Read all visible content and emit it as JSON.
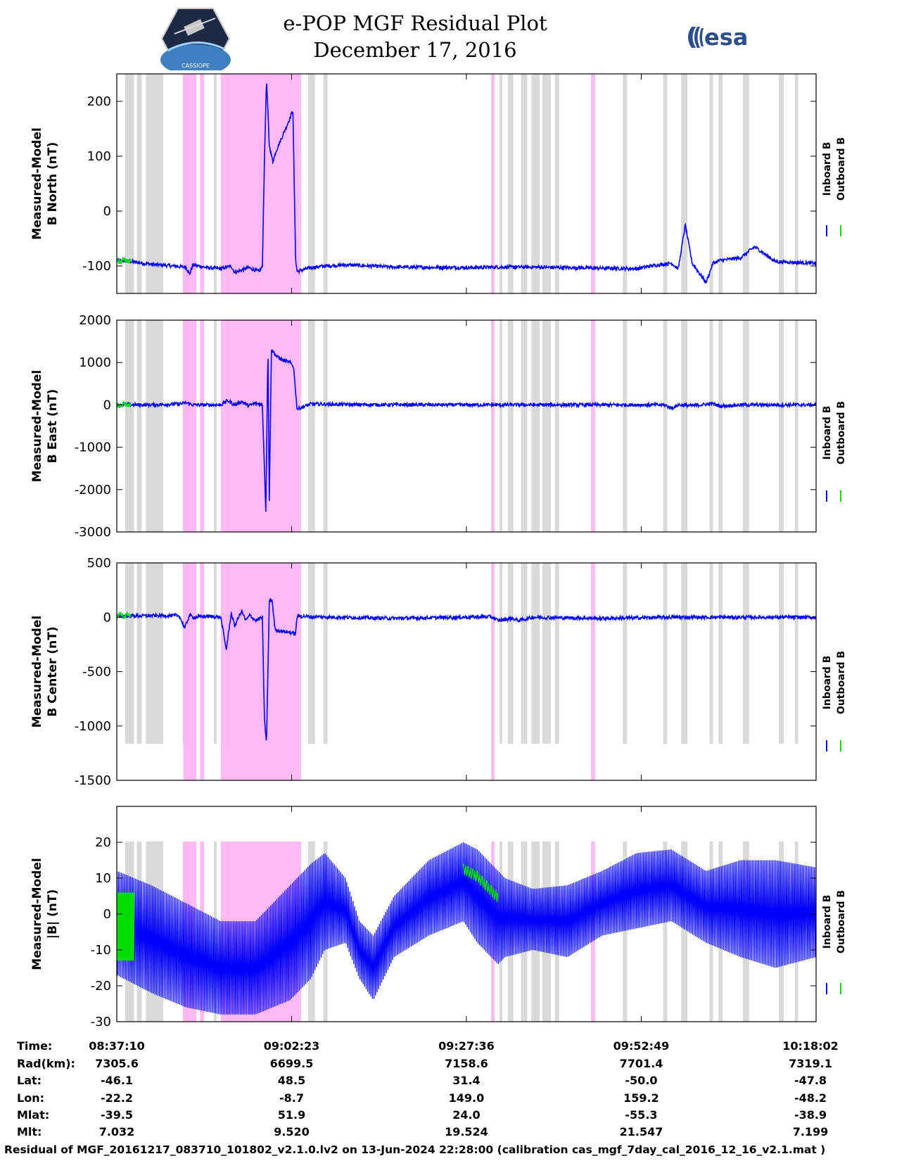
{
  "header": {
    "title_line1": "e-POP MGF Residual Plot",
    "title_line2": "December 17, 2016",
    "left_logo_text": "CASSIOPE",
    "right_logo_text": "esa"
  },
  "colors": {
    "inboard": "#0000ff",
    "outboard": "#00dd00",
    "gray_band": "#d9d9d9",
    "pink_band": "#ffb3f5"
  },
  "legend": {
    "inboard": "Inboard B",
    "outboard": "Outboard B"
  },
  "time_axis": {
    "start_min": 0,
    "end_min": 100.87,
    "tick_minutes": [
      0,
      25.22,
      50.43,
      75.65,
      100.87
    ]
  },
  "bands": {
    "gray": [
      [
        1.2,
        2.5
      ],
      [
        2.9,
        3.6
      ],
      [
        4.2,
        6.7
      ],
      [
        9.5,
        10.5
      ],
      [
        14,
        14.4
      ],
      [
        15.8,
        16.4
      ],
      [
        27.6,
        28.6
      ],
      [
        29.8,
        30.4
      ],
      [
        55.2,
        55.6
      ],
      [
        56.4,
        57.2
      ],
      [
        58.3,
        59.2
      ],
      [
        59.8,
        61.0
      ],
      [
        61.4,
        62.6
      ],
      [
        63.2,
        63.8
      ],
      [
        73.0,
        73.6
      ],
      [
        78.8,
        79.4
      ],
      [
        81.4,
        82.3
      ],
      [
        85.5,
        86.0
      ],
      [
        86.8,
        87.4
      ],
      [
        90.3,
        91.2
      ],
      [
        95.5,
        96.2
      ],
      [
        97.8,
        98.3
      ]
    ],
    "pink": [
      [
        9.6,
        11.5
      ],
      [
        12.0,
        12.6
      ],
      [
        15.0,
        26.6
      ],
      [
        54.0,
        54.5
      ],
      [
        68.4,
        69.0
      ]
    ]
  },
  "chart_data": [
    {
      "type": "line",
      "title": "",
      "ylabel_lines": [
        "Measured-Model",
        "B North (nT)"
      ],
      "ylim": [
        -150,
        250
      ],
      "yticks": [
        -100,
        0,
        100,
        200
      ],
      "series": [
        {
          "name": "Inboard B",
          "x": [
            0,
            2,
            5,
            8,
            10,
            10.5,
            11,
            13,
            15,
            16.5,
            17,
            19,
            20.5,
            21,
            21.3,
            21.6,
            22,
            22.5,
            23,
            24,
            25,
            25.4,
            25.8,
            26,
            28,
            30,
            33,
            40,
            50,
            55,
            60,
            65,
            70,
            75,
            77,
            80,
            81,
            82,
            83,
            85,
            86,
            87,
            90,
            92,
            95,
            100.87
          ],
          "values": [
            -90,
            -92,
            -97,
            -100,
            -102,
            -115,
            -98,
            -103,
            -105,
            -100,
            -112,
            -103,
            -110,
            -102,
            95,
            240,
            120,
            90,
            110,
            140,
            170,
            185,
            -90,
            -110,
            -103,
            -100,
            -98,
            -102,
            -103,
            -102,
            -102,
            -103,
            -104,
            -105,
            -100,
            -95,
            -105,
            -25,
            -95,
            -130,
            -95,
            -90,
            -85,
            -65,
            -92,
            -95
          ]
        },
        {
          "name": "Outboard B",
          "x": [
            0,
            0.5,
            1,
            1.5,
            2
          ],
          "values": [
            -88,
            -95,
            -86,
            -92,
            -90
          ]
        }
      ]
    },
    {
      "type": "line",
      "title": "",
      "ylabel_lines": [
        "Measured-Model",
        "B East (nT)"
      ],
      "ylim": [
        -3000,
        2000
      ],
      "yticks": [
        -3000,
        -2000,
        -1000,
        0,
        1000,
        2000
      ],
      "series": [
        {
          "name": "Inboard B",
          "x": [
            0,
            5,
            9,
            10,
            11,
            13,
            15,
            16,
            17,
            18,
            19,
            20,
            21,
            21.2,
            21.5,
            21.8,
            22,
            22.3,
            22.6,
            23,
            24,
            25,
            25.5,
            26,
            28,
            35,
            50,
            60,
            70,
            75,
            79,
            80,
            81,
            83,
            86,
            87,
            90,
            95,
            100.87
          ],
          "values": [
            0,
            0,
            20,
            50,
            0,
            0,
            0,
            100,
            0,
            80,
            -20,
            40,
            0,
            -1000,
            -2500,
            1350,
            -2300,
            1300,
            1250,
            1150,
            1050,
            1000,
            900,
            -100,
            20,
            5,
            0,
            0,
            0,
            0,
            0,
            -80,
            0,
            -20,
            30,
            -30,
            0,
            0,
            0
          ]
        },
        {
          "name": "Outboard B",
          "x": [
            0,
            0.5,
            1,
            1.5,
            2
          ],
          "values": [
            20,
            -30,
            30,
            -10,
            10
          ]
        }
      ]
    },
    {
      "type": "line",
      "title": "",
      "ylabel_lines": [
        "Measured-Model",
        "B Center (nT)"
      ],
      "ylim": [
        -1500,
        500
      ],
      "yticks": [
        -1500,
        -1000,
        -500,
        0,
        500
      ],
      "series": [
        {
          "name": "Inboard B",
          "x": [
            0,
            5,
            9,
            9.8,
            10.5,
            11,
            13,
            15,
            15.8,
            16.5,
            17,
            18,
            18.6,
            19.2,
            20,
            21,
            21.3,
            21.6,
            22,
            22.4,
            22.8,
            23,
            25,
            25.8,
            26,
            28,
            40,
            54,
            55,
            57,
            58,
            60,
            70,
            80,
            90,
            100.87
          ],
          "values": [
            10,
            15,
            15,
            -100,
            20,
            0,
            10,
            0,
            -300,
            40,
            -80,
            60,
            -30,
            20,
            -30,
            0,
            -950,
            -1150,
            150,
            160,
            -100,
            -120,
            -140,
            -150,
            10,
            5,
            -10,
            5,
            -30,
            -10,
            -30,
            0,
            -10,
            0,
            0,
            0
          ]
        },
        {
          "name": "Outboard B",
          "x": [
            0,
            0.5,
            1,
            1.5,
            2
          ],
          "values": [
            -10,
            40,
            0,
            30,
            10
          ]
        }
      ]
    },
    {
      "type": "line",
      "title": "",
      "ylabel_lines": [
        "Measured-Model",
        "|B| (nT)"
      ],
      "ylim": [
        -30,
        30
      ],
      "yticks": [
        -30,
        -20,
        -10,
        0,
        10,
        20
      ],
      "series": [
        {
          "name": "Inboard B upper envelope",
          "x": [
            0,
            5,
            10,
            15,
            20,
            25,
            28,
            30,
            33,
            35,
            37,
            40,
            45,
            50,
            52,
            54,
            55,
            56,
            60,
            65,
            70,
            75,
            80,
            85,
            90,
            95,
            100.87
          ],
          "values": [
            12,
            8,
            3,
            -2,
            -2,
            8,
            14,
            17,
            10,
            -2,
            -6,
            5,
            15,
            20,
            18,
            14,
            12,
            10,
            7,
            8,
            12,
            17,
            18,
            12,
            15,
            15,
            13
          ]
        },
        {
          "name": "Inboard B lower envelope",
          "x": [
            0,
            5,
            10,
            15,
            20,
            25,
            28,
            30,
            33,
            35,
            37,
            40,
            45,
            50,
            52,
            54,
            55,
            56,
            60,
            65,
            70,
            75,
            80,
            85,
            90,
            95,
            100.87
          ],
          "values": [
            -17,
            -22,
            -26,
            -28,
            -28,
            -24,
            -18,
            -10,
            -8,
            -18,
            -24,
            -12,
            -6,
            -2,
            -8,
            -12,
            -14,
            -12,
            -10,
            -12,
            -6,
            -4,
            -2,
            -8,
            -12,
            -15,
            -12
          ]
        },
        {
          "name": "Outboard B",
          "x": [
            0,
            0.5,
            1,
            1.5,
            2,
            2.5,
            50,
            51,
            52,
            53,
            54,
            55
          ],
          "values": [
            -12,
            6,
            -14,
            5,
            -13,
            -2,
            14,
            13,
            12,
            10,
            8,
            6
          ]
        }
      ]
    }
  ],
  "info_table": {
    "labels": [
      "Time:",
      "Rad(km):",
      "Lat:",
      "Lon:",
      "Mlat:",
      "Mlt:"
    ],
    "columns": [
      [
        "08:37:10",
        "7305.6",
        "-46.1",
        "-22.2",
        "-39.5",
        "7.032"
      ],
      [
        "09:02:23",
        "6699.5",
        "48.5",
        "-8.7",
        "51.9",
        "9.520"
      ],
      [
        "09:27:36",
        "7158.6",
        "31.4",
        "149.0",
        "24.0",
        "19.524"
      ],
      [
        "09:52:49",
        "7701.4",
        "-50.0",
        "159.2",
        "-55.3",
        "21.547"
      ],
      [
        "10:18:02",
        "7319.1",
        "-47.8",
        "-48.2",
        "-38.9",
        "7.199"
      ]
    ]
  },
  "footer": "Residual of MGF_20161217_083710_101802_v2.1.0.lv2 on 13-Jun-2024 22:28:00 (calibration cas_mgf_7day_cal_2016_12_16_v2.1.mat )"
}
